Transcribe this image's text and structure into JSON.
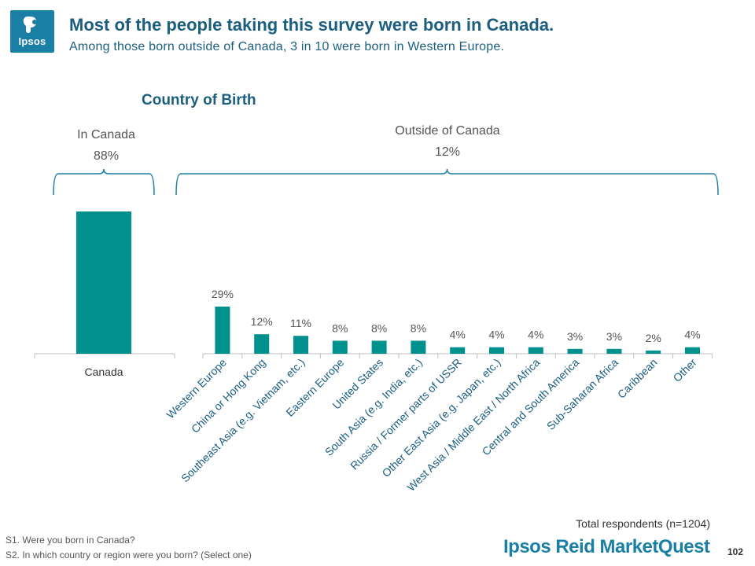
{
  "logo": {
    "text": "Ipsos"
  },
  "header": {
    "title": "Most of the people taking this survey were born in Canada.",
    "subtitle": "Among those born outside of Canada, 3 in 10 were born in Western Europe."
  },
  "chart_data": [
    {
      "type": "bar",
      "title": "Country of Birth",
      "group_label": "In Canada",
      "group_value": "88%",
      "categories": [
        "Canada"
      ],
      "values": [
        88
      ],
      "ylim": [
        0,
        88
      ],
      "grid": false,
      "legend": "none",
      "color": "#00918f"
    },
    {
      "type": "bar",
      "group_label": "Outside of Canada",
      "group_value": "12%",
      "categories": [
        "Western Europe",
        "China or Hong Kong",
        "Southeast Asia (e.g. Vietnam, etc.)",
        "Eastern Europe",
        "United States",
        "South Asia (e.g. India, etc.)",
        "Russia / Former parts of USSR",
        "Other East Asia (e.g. Japan, etc.)",
        "West Asia / Middle East / North Africa",
        "Central and South America",
        "Sub-Saharan Africa",
        "Caribbean",
        "Other"
      ],
      "values": [
        29,
        12,
        11,
        8,
        8,
        8,
        4,
        4,
        4,
        3,
        3,
        2,
        4
      ],
      "value_labels": [
        "29%",
        "12%",
        "11%",
        "8%",
        "8%",
        "8%",
        "4%",
        "4%",
        "4%",
        "3%",
        "3%",
        "2%",
        "4%"
      ],
      "grid": false,
      "legend": "none",
      "color": "#00918f"
    }
  ],
  "footer": {
    "respondents": "Total respondents (n=1204)",
    "q1": "S1. Were you born in Canada?",
    "q2": "S2. In which country or region were you born? (Select one)",
    "brand": "Ipsos Reid MarketQuest",
    "page": "102"
  }
}
